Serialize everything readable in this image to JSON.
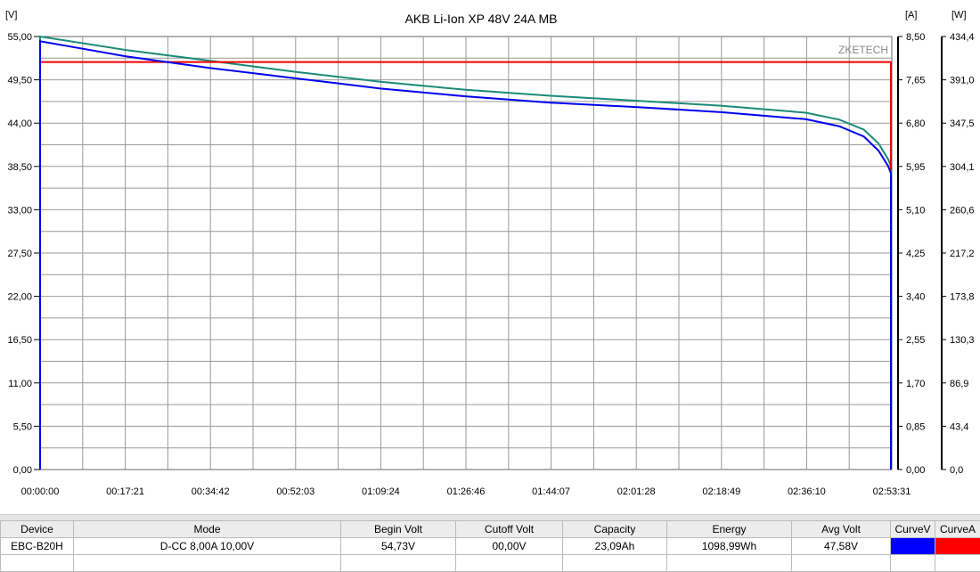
{
  "chart_data": {
    "type": "line",
    "title": "AKB Li-Ion XP 48V 24A MB",
    "watermark": "ZKETECH",
    "left_axis": {
      "unit": "[V]",
      "range": [
        0,
        55
      ],
      "ticks": [
        "0,00",
        "5,50",
        "11,00",
        "16,50",
        "22,00",
        "27,50",
        "33,00",
        "38,50",
        "44,00",
        "49,50",
        "55,00"
      ]
    },
    "right_axis_1": {
      "unit": "[A]",
      "range": [
        0,
        8.5
      ],
      "ticks": [
        "0,00",
        "0,85",
        "1,70",
        "2,55",
        "3,40",
        "4,25",
        "5,10",
        "5,95",
        "6,80",
        "7,65",
        "8,50"
      ]
    },
    "right_axis_2": {
      "unit": "[W]",
      "range": [
        0,
        434.4
      ],
      "ticks": [
        "0,0",
        "43,4",
        "86,9",
        "130,3",
        "173,8",
        "217,2",
        "260,6",
        "304,1",
        "347,5",
        "391,0",
        "434,4"
      ]
    },
    "x_axis": {
      "range": [
        "00:00:00",
        "02:53:31"
      ],
      "ticks": [
        "00:00:00",
        "00:17:21",
        "00:34:42",
        "00:52:03",
        "01:09:24",
        "01:26:46",
        "01:44:07",
        "02:01:28",
        "02:18:49",
        "02:36:10",
        "02:53:31"
      ]
    },
    "grid": true,
    "series": [
      {
        "axis": "V",
        "color": "#0000ee",
        "x": [
          "00:00:00",
          "00:17:21",
          "00:34:42",
          "00:52:03",
          "01:09:24",
          "01:26:46",
          "01:44:07",
          "02:01:28",
          "02:18:49",
          "02:36:10",
          "02:43:00",
          "02:48:00",
          "02:51:00",
          "02:53:00",
          "02:53:31"
        ],
        "y": [
          54.4,
          52.5,
          51.0,
          49.7,
          48.4,
          47.4,
          46.6,
          46.05,
          45.4,
          44.5,
          43.6,
          42.3,
          40.5,
          38.5,
          37.6
        ]
      },
      {
        "axis": "W",
        "color": "#1a8a78",
        "x": [
          "00:00:00",
          "00:17:21",
          "00:34:42",
          "00:52:03",
          "01:09:24",
          "01:26:46",
          "01:44:07",
          "02:01:28",
          "02:18:49",
          "02:36:10",
          "02:43:00",
          "02:48:00",
          "02:51:00",
          "02:53:00",
          "02:53:31"
        ],
        "y": [
          434.4,
          421,
          410,
          399,
          389,
          381,
          375,
          370,
          365,
          358,
          351,
          341,
          327,
          311,
          304
        ]
      },
      {
        "axis": "A",
        "color": "#ee0000",
        "x": [
          "00:00:00",
          "02:53:31"
        ],
        "y": [
          8.0,
          8.0
        ]
      }
    ]
  },
  "table": {
    "headers": [
      "Device",
      "Mode",
      "Begin Volt",
      "Cutoff Volt",
      "Capacity",
      "Energy",
      "Avg Volt",
      "CurveV",
      "CurveA"
    ],
    "row": [
      "EBC-B20H",
      "D-CC  8,00A  10,00V",
      "54,73V",
      "00,00V",
      "23,09Ah",
      "1098,99Wh",
      "47,58V"
    ],
    "curve_colors": [
      "#0000ff",
      "#ff0000"
    ]
  }
}
